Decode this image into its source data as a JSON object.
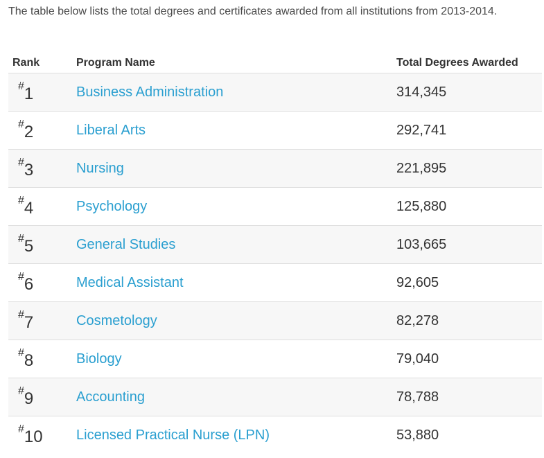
{
  "intro": {
    "text": "The table below lists the total degrees and certificates awarded from all institutions from 2013-2014."
  },
  "table": {
    "headers": {
      "rank": "Rank",
      "program": "Program Name",
      "total": "Total Degrees Awarded"
    },
    "rows": [
      {
        "hash": "#",
        "rank": "1",
        "program": "Business Administration",
        "total": "314,345"
      },
      {
        "hash": "#",
        "rank": "2",
        "program": "Liberal Arts",
        "total": "292,741"
      },
      {
        "hash": "#",
        "rank": "3",
        "program": "Nursing",
        "total": "221,895"
      },
      {
        "hash": "#",
        "rank": "4",
        "program": "Psychology",
        "total": "125,880"
      },
      {
        "hash": "#",
        "rank": "5",
        "program": "General Studies",
        "total": "103,665"
      },
      {
        "hash": "#",
        "rank": "6",
        "program": "Medical Assistant",
        "total": "92,605"
      },
      {
        "hash": "#",
        "rank": "7",
        "program": "Cosmetology",
        "total": "82,278"
      },
      {
        "hash": "#",
        "rank": "8",
        "program": "Biology",
        "total": "79,040"
      },
      {
        "hash": "#",
        "rank": "9",
        "program": "Accounting",
        "total": "78,788"
      },
      {
        "hash": "#",
        "rank": "10",
        "program": "Licensed Practical Nurse (LPN)",
        "total": "53,880"
      }
    ]
  },
  "colors": {
    "link": "#2a9fd0",
    "text": "#333333",
    "stripe": "#f7f7f7",
    "border": "#dedede"
  }
}
